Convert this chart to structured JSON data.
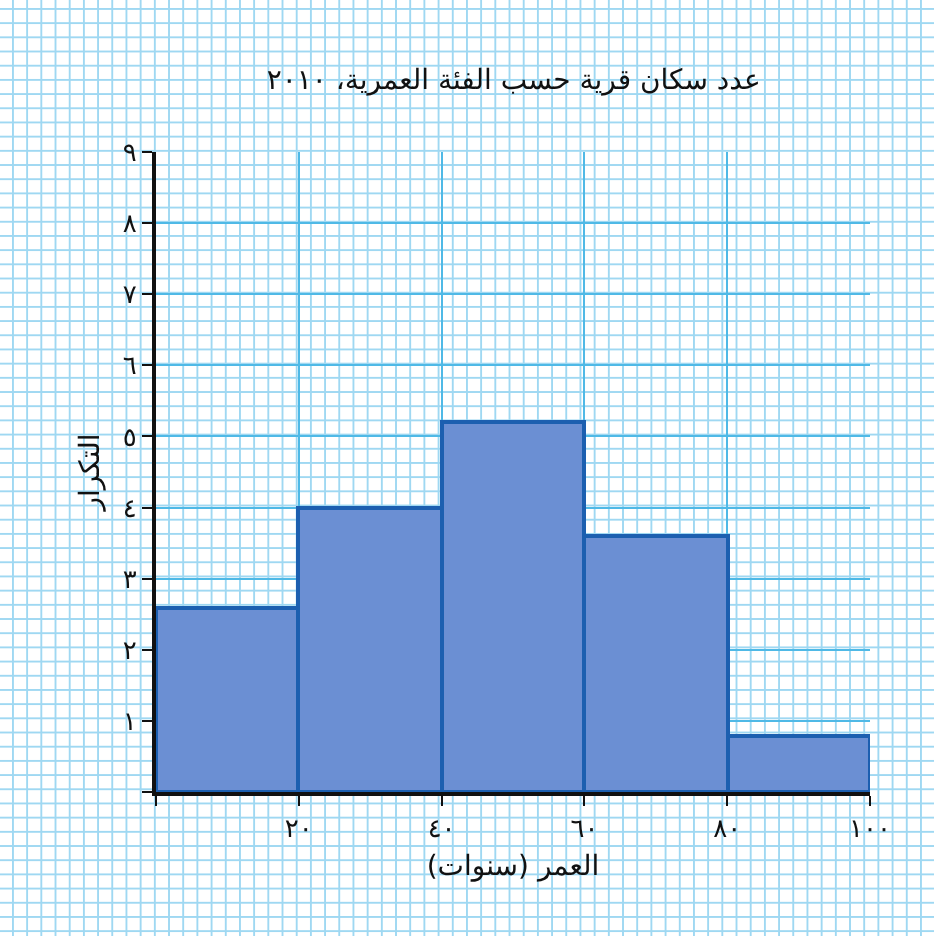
{
  "chart_data": {
    "type": "histogram",
    "title": "عدد سكان قرية حسب الفئة العمرية، ٢٠١٠",
    "xlabel": "العمر (سنوات)",
    "ylabel": "التكرار",
    "bins": [
      0,
      20,
      40,
      60,
      80,
      100
    ],
    "values": [
      2.6,
      4,
      5.2,
      3.6,
      0.8
    ],
    "color": "#6b8fd3",
    "xlim": [
      0,
      100
    ],
    "xticks": [
      {
        "value": 0,
        "label": null
      },
      {
        "value": 20,
        "label": "٢٠"
      },
      {
        "value": 40,
        "label": "٤٠"
      },
      {
        "value": 60,
        "label": "٦٠"
      },
      {
        "value": 80,
        "label": "٨٠"
      },
      {
        "value": 100,
        "label": "١٠٠"
      }
    ],
    "ylim": [
      0,
      9
    ],
    "yticks": [
      {
        "value": 0,
        "label": null
      },
      {
        "value": 1,
        "label": "١"
      },
      {
        "value": 2,
        "label": "٢"
      },
      {
        "value": 3,
        "label": "٣"
      },
      {
        "value": 4,
        "label": "٤"
      },
      {
        "value": 5,
        "label": "٥"
      },
      {
        "value": 6,
        "label": "٦"
      },
      {
        "value": 7,
        "label": "٧"
      },
      {
        "value": 8,
        "label": "٨"
      },
      {
        "value": 9,
        "label": "٩"
      }
    ],
    "grid": true
  }
}
